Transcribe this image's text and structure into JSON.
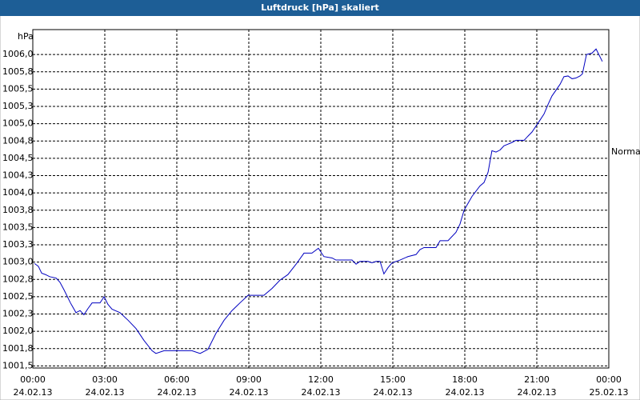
{
  "chart_data": {
    "type": "line",
    "title": "Luftdruck [hPa] skaliert",
    "ylabel": "hPa",
    "annotations": [
      "Normal"
    ],
    "x": [
      0.07,
      0.23,
      0.37,
      0.53,
      0.7,
      0.97,
      1.13,
      1.3,
      1.57,
      1.8,
      1.97,
      2.13,
      2.3,
      2.47,
      2.8,
      2.97,
      3.13,
      3.3,
      3.63,
      3.97,
      4.3,
      4.63,
      4.97,
      5.13,
      5.47,
      5.97,
      6.3,
      6.63,
      6.97,
      7.3,
      7.63,
      7.97,
      8.3,
      8.63,
      8.97,
      9.3,
      9.63,
      9.97,
      10.3,
      10.63,
      10.97,
      11.3,
      11.63,
      11.9,
      12.13,
      12.47,
      12.63,
      13.3,
      13.47,
      13.63,
      13.97,
      14.13,
      14.3,
      14.47,
      14.63,
      14.8,
      14.97,
      15.3,
      15.63,
      15.97,
      16.13,
      16.3,
      16.8,
      16.97,
      17.3,
      17.63,
      17.8,
      17.97,
      18.3,
      18.63,
      18.8,
      18.97,
      19.13,
      19.3,
      19.47,
      19.63,
      19.97,
      20.13,
      20.47,
      20.63,
      20.8,
      21.13,
      21.3,
      21.47,
      21.63,
      21.97,
      22.13,
      22.3,
      22.47,
      22.63,
      22.8,
      22.9,
      23.07,
      23.3,
      23.47,
      23.73
    ],
    "series": [
      {
        "name": "Luftdruck",
        "color": "#0000c0",
        "values": [
          1002.98,
          1002.94,
          1002.84,
          1002.82,
          1002.79,
          1002.77,
          1002.71,
          1002.6,
          1002.41,
          1002.27,
          1002.3,
          1002.24,
          1002.33,
          1002.41,
          1002.41,
          1002.5,
          1002.39,
          1002.32,
          1002.27,
          1002.16,
          1002.04,
          1001.87,
          1001.72,
          1001.68,
          1001.72,
          1001.72,
          1001.72,
          1001.72,
          1001.68,
          1001.74,
          1001.97,
          1002.16,
          1002.3,
          1002.41,
          1002.52,
          1002.52,
          1002.52,
          1002.62,
          1002.74,
          1002.82,
          1002.97,
          1003.13,
          1003.13,
          1003.2,
          1003.08,
          1003.06,
          1003.03,
          1003.03,
          1002.97,
          1003.01,
          1003.01,
          1002.99,
          1003.01,
          1003.01,
          1002.83,
          1002.92,
          1002.99,
          1003.03,
          1003.08,
          1003.11,
          1003.18,
          1003.21,
          1003.21,
          1003.31,
          1003.31,
          1003.43,
          1003.55,
          1003.75,
          1003.95,
          1004.1,
          1004.15,
          1004.3,
          1004.61,
          1004.59,
          1004.62,
          1004.68,
          1004.73,
          1004.76,
          1004.76,
          1004.82,
          1004.88,
          1005.05,
          1005.14,
          1005.28,
          1005.4,
          1005.57,
          1005.68,
          1005.69,
          1005.65,
          1005.66,
          1005.69,
          1005.72,
          1006.0,
          1006.02,
          1006.08,
          1005.9
        ]
      }
    ],
    "xlim": [
      0,
      24
    ],
    "xticks": [
      {
        "value": 0,
        "label": "00:00"
      },
      {
        "value": 3,
        "label": "03:00"
      },
      {
        "value": 6,
        "label": "06:00"
      },
      {
        "value": 9,
        "label": "09:00"
      },
      {
        "value": 12,
        "label": "12:00"
      },
      {
        "value": 15,
        "label": "15:00"
      },
      {
        "value": 18,
        "label": "18:00"
      },
      {
        "value": 21,
        "label": "21:00"
      },
      {
        "value": 24,
        "label": "00:00"
      }
    ],
    "xtick_dates": [
      "24.02.13",
      "24.02.13",
      "24.02.13",
      "24.02.13",
      "24.02.13",
      "24.02.13",
      "24.02.13",
      "24.02.13",
      "25.02.13"
    ],
    "ylim": [
      1001.47,
      1006.36
    ],
    "yticks": [
      {
        "value": 1001.5,
        "label": "1001,5"
      },
      {
        "value": 1001.75,
        "label": "1001,8"
      },
      {
        "value": 1002,
        "label": "1002,0"
      },
      {
        "value": 1002.25,
        "label": "1002,3"
      },
      {
        "value": 1002.5,
        "label": "1002,5"
      },
      {
        "value": 1002.75,
        "label": "1002,8"
      },
      {
        "value": 1003,
        "label": "1003,0"
      },
      {
        "value": 1003.25,
        "label": "1003,3"
      },
      {
        "value": 1003.5,
        "label": "1003,5"
      },
      {
        "value": 1003.75,
        "label": "1003,8"
      },
      {
        "value": 1004,
        "label": "1004,0"
      },
      {
        "value": 1004.25,
        "label": "1004,3"
      },
      {
        "value": 1004.5,
        "label": "1004,5"
      },
      {
        "value": 1004.75,
        "label": "1004,8"
      },
      {
        "value": 1005,
        "label": "1005,0"
      },
      {
        "value": 1005.25,
        "label": "1005,3"
      },
      {
        "value": 1005.5,
        "label": "1005,5"
      },
      {
        "value": 1005.75,
        "label": "1005,8"
      },
      {
        "value": 1006,
        "label": "1006,0"
      }
    ],
    "grid": true
  }
}
